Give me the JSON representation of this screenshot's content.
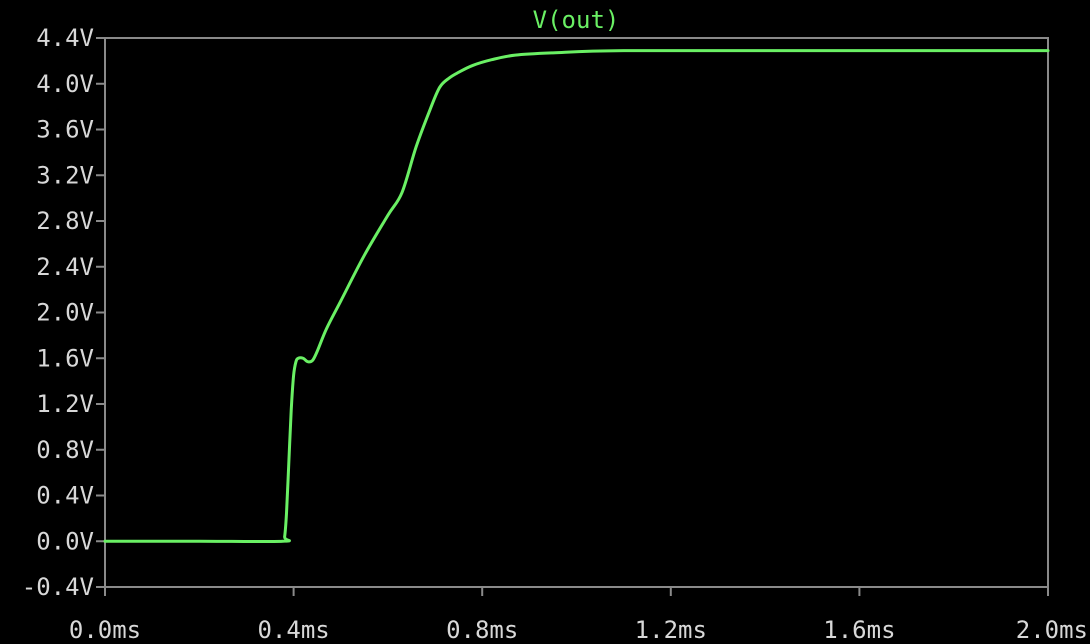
{
  "chart_data": {
    "type": "line",
    "title": "V(out)",
    "xlabel": "",
    "ylabel": "",
    "xlim": [
      0.0,
      2.0
    ],
    "ylim": [
      -0.4,
      4.4
    ],
    "grid": false,
    "legend": "none",
    "x_ticks": [
      {
        "value": 0.0,
        "label": "0.0ms"
      },
      {
        "value": 0.4,
        "label": "0.4ms"
      },
      {
        "value": 0.8,
        "label": "0.8ms"
      },
      {
        "value": 1.2,
        "label": "1.2ms"
      },
      {
        "value": 1.6,
        "label": "1.6ms"
      },
      {
        "value": 2.0,
        "label": "2.0ms"
      }
    ],
    "y_ticks": [
      {
        "value": 4.4,
        "label": "4.4V"
      },
      {
        "value": 4.0,
        "label": "4.0V"
      },
      {
        "value": 3.6,
        "label": "3.6V"
      },
      {
        "value": 3.2,
        "label": "3.2V"
      },
      {
        "value": 2.8,
        "label": "2.8V"
      },
      {
        "value": 2.4,
        "label": "2.4V"
      },
      {
        "value": 2.0,
        "label": "2.0V"
      },
      {
        "value": 1.6,
        "label": "1.6V"
      },
      {
        "value": 1.2,
        "label": "1.2V"
      },
      {
        "value": 0.8,
        "label": "0.8V"
      },
      {
        "value": 0.4,
        "label": "0.4V"
      },
      {
        "value": 0.0,
        "label": "0.0V"
      },
      {
        "value": -0.4,
        "label": "-0.4V"
      }
    ],
    "series": [
      {
        "name": "V(out)",
        "color": "#6af064",
        "x": [
          0.0,
          0.2,
          0.377,
          0.381,
          0.385,
          0.39,
          0.395,
          0.4,
          0.405,
          0.41,
          0.42,
          0.43,
          0.44,
          0.45,
          0.47,
          0.5,
          0.55,
          0.6,
          0.63,
          0.66,
          0.69,
          0.71,
          0.73,
          0.75,
          0.78,
          0.82,
          0.87,
          0.95,
          1.1,
          1.5,
          2.0
        ],
        "y": [
          0.0,
          0.0,
          0.0,
          0.04,
          0.25,
          0.7,
          1.15,
          1.45,
          1.57,
          1.6,
          1.6,
          1.57,
          1.58,
          1.66,
          1.86,
          2.1,
          2.5,
          2.85,
          3.05,
          3.45,
          3.78,
          3.97,
          4.05,
          4.1,
          4.16,
          4.21,
          4.25,
          4.27,
          4.29,
          4.29,
          4.29
        ]
      }
    ]
  }
}
